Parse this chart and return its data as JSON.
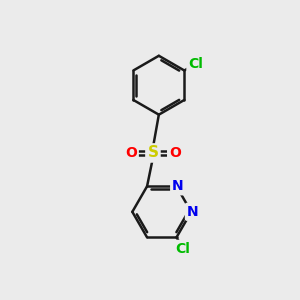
{
  "bg_color": "#ebebeb",
  "bond_color": "#1a1a1a",
  "bond_width": 1.8,
  "atom_colors": {
    "Cl_top": "#00bb00",
    "Cl_bottom": "#00bb00",
    "S": "#cccc00",
    "O_left": "#ff0000",
    "O_right": "#ff0000",
    "N1": "#0000ee",
    "N2": "#0000ee"
  },
  "atom_fontsizes": {
    "Cl": 10,
    "S": 11,
    "O": 10,
    "N": 10
  }
}
